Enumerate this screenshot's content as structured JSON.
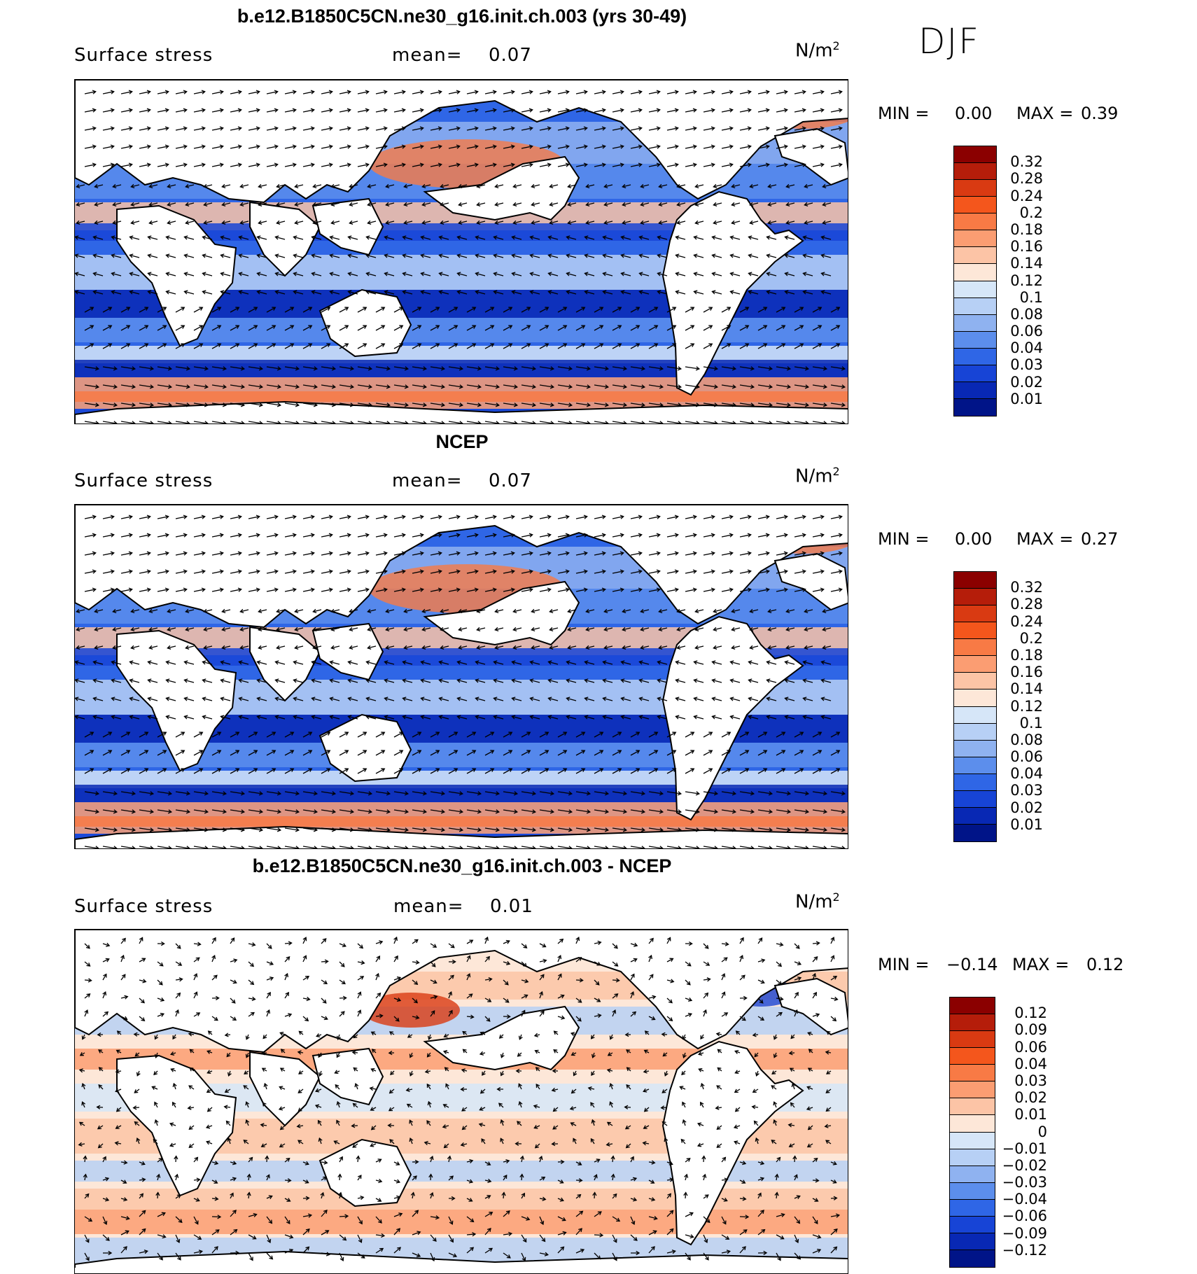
{
  "season": "DJF",
  "panels": [
    {
      "title": "b.e12.B1850C5CN.ne30_g16.init.ch.003 (yrs 30-49)",
      "variable": "Surface stress",
      "mean_label": "mean=",
      "mean_value": "0.07",
      "units_base": "N/m",
      "units_exp": "2",
      "min_label": "MIN =",
      "min_value": "0.00",
      "max_label": "MAX =",
      "max_value": "0.39",
      "colorbar_ticks": [
        "0.32",
        "0.28",
        "0.24",
        "0.2",
        "0.18",
        "0.16",
        "0.14",
        "0.12",
        "0.1",
        "0.08",
        "0.06",
        "0.04",
        "0.03",
        "0.02",
        "0.01"
      ],
      "colors": [
        "#8b0000",
        "#b51d0a",
        "#d93a12",
        "#f4561c",
        "#f87a45",
        "#fb9d72",
        "#fcc4a6",
        "#fde7d8",
        "#d6e6f8",
        "#b7d0f5",
        "#8fb2f0",
        "#5c8eec",
        "#2f66e6",
        "#1744d6",
        "#0828b4",
        "#001488"
      ]
    },
    {
      "title": "NCEP",
      "variable": "Surface stress",
      "mean_label": "mean=",
      "mean_value": "0.07",
      "units_base": "N/m",
      "units_exp": "2",
      "min_label": "MIN =",
      "min_value": "0.00",
      "max_label": "MAX =",
      "max_value": "0.27",
      "colorbar_ticks": [
        "0.32",
        "0.28",
        "0.24",
        "0.2",
        "0.18",
        "0.16",
        "0.14",
        "0.12",
        "0.1",
        "0.08",
        "0.06",
        "0.04",
        "0.03",
        "0.02",
        "0.01"
      ],
      "colors": [
        "#8b0000",
        "#b51d0a",
        "#d93a12",
        "#f4561c",
        "#f87a45",
        "#fb9d72",
        "#fcc4a6",
        "#fde7d8",
        "#d6e6f8",
        "#b7d0f5",
        "#8fb2f0",
        "#5c8eec",
        "#2f66e6",
        "#1744d6",
        "#0828b4",
        "#001488"
      ]
    },
    {
      "title": "b.e12.B1850C5CN.ne30_g16.init.ch.003 - NCEP",
      "variable": "Surface stress",
      "mean_label": "mean=",
      "mean_value": "0.01",
      "units_base": "N/m",
      "units_exp": "2",
      "min_label": "MIN =",
      "min_value": "−0.14",
      "max_label": "MAX =",
      "max_value": "0.12",
      "colorbar_ticks": [
        "0.12",
        "0.09",
        "0.06",
        "0.04",
        "0.03",
        "0.02",
        "0.01",
        "0",
        "−0.01",
        "−0.02",
        "−0.03",
        "−0.04",
        "−0.06",
        "−0.09",
        "−0.12"
      ],
      "colors": [
        "#8b0000",
        "#b51d0a",
        "#d93a12",
        "#f4561c",
        "#f87a45",
        "#fb9d72",
        "#fcc4a6",
        "#fde7d8",
        "#d6e6f8",
        "#b7d0f5",
        "#8fb2f0",
        "#5c8eec",
        "#2f66e6",
        "#1744d6",
        "#0828b4",
        "#001488"
      ]
    }
  ]
}
